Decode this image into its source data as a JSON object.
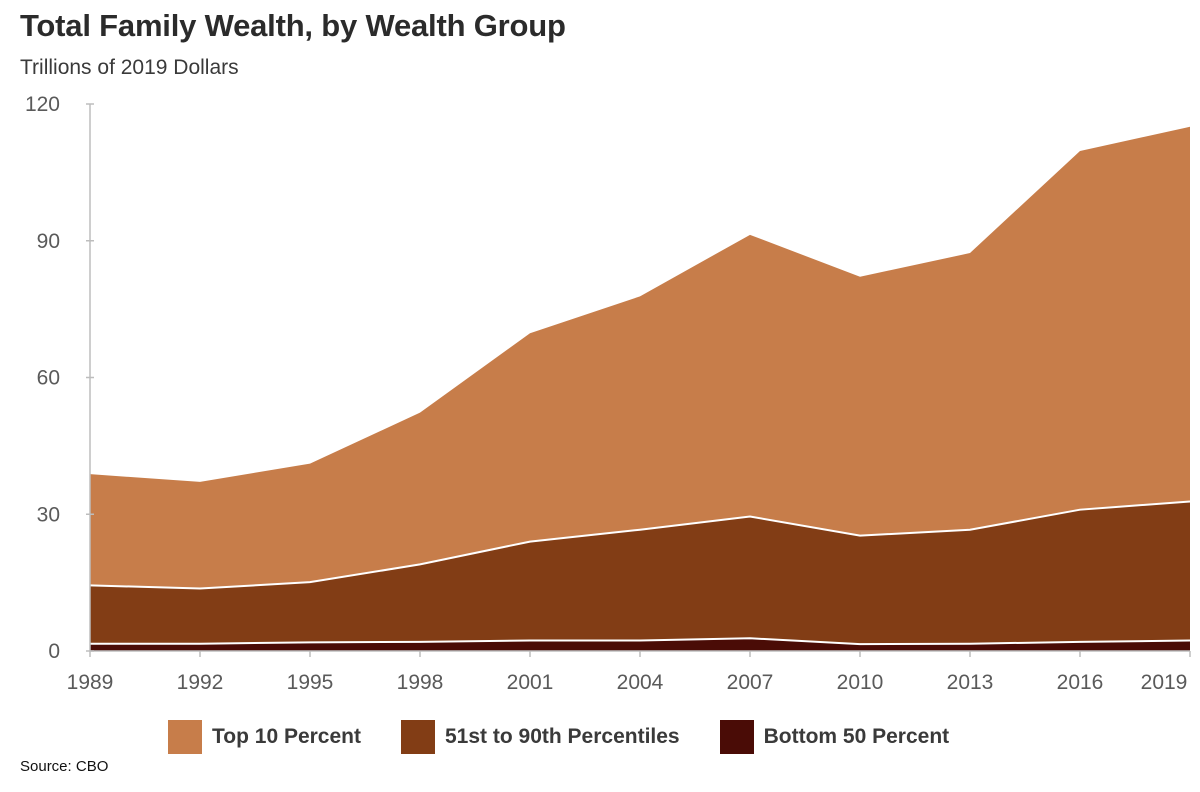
{
  "title": "Total Family Wealth, by Wealth Group",
  "subtitle": "Trillions of 2019 Dollars",
  "source": "Source: CBO",
  "chart_data": {
    "type": "area",
    "stacked": true,
    "x": [
      "1989",
      "1992",
      "1995",
      "1998",
      "2001",
      "2004",
      "2007",
      "2010",
      "2013",
      "2016",
      "2019"
    ],
    "ylim": [
      0,
      120
    ],
    "yticks": [
      "0",
      "30",
      "60",
      "90",
      "120"
    ],
    "grid": false,
    "legend_position": "bottom",
    "series": [
      {
        "name": "Bottom 50 Percent",
        "color": "#4a0c06",
        "values": [
          1.6,
          1.6,
          1.9,
          2.0,
          2.3,
          2.3,
          2.8,
          1.5,
          1.6,
          2.0,
          2.3
        ]
      },
      {
        "name": "51st to 90th Percentiles",
        "color": "#823d15",
        "values": [
          12.8,
          12.1,
          13.2,
          17.0,
          21.7,
          24.3,
          26.7,
          23.8,
          25.0,
          29.0,
          30.5
        ]
      },
      {
        "name": "Top 10 Percent",
        "color": "#c77d4a",
        "values": [
          24.4,
          23.4,
          26.0,
          33.3,
          45.7,
          51.2,
          61.8,
          56.8,
          60.7,
          78.7,
          82.2
        ]
      }
    ]
  },
  "legend": [
    {
      "label": "Top 10 Percent",
      "color": "#c77d4a"
    },
    {
      "label": "51st to 90th Percentiles",
      "color": "#823d15"
    },
    {
      "label": "Bottom 50 Percent",
      "color": "#4a0c06"
    }
  ]
}
